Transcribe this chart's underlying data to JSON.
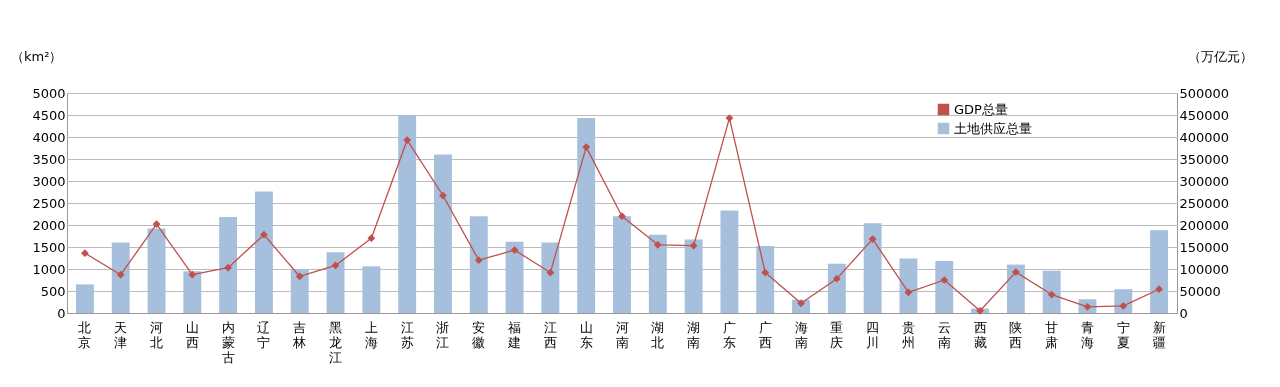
{
  "chart_data": {
    "type": "bar",
    "ylabel": "（km²）",
    "y2label": "（万亿元）",
    "categories": [
      "北京",
      "天津",
      "河北",
      "山西",
      "内蒙古",
      "辽宁",
      "吉林",
      "黑龙江",
      "上海",
      "江苏",
      "浙江",
      "安徽",
      "福建",
      "江西",
      "山东",
      "河南",
      "湖北",
      "湖南",
      "广东",
      "广西",
      "海南",
      "重庆",
      "四川",
      "贵州",
      "云南",
      "西藏",
      "陕西",
      "甘肃",
      "青海",
      "宁夏",
      "新疆"
    ],
    "series": [
      {
        "name": "GDP总量",
        "type": "line",
        "axis": "y2",
        "color": "#c0504d",
        "marker": "diamond",
        "values": [
          136000,
          87000,
          202000,
          87000,
          103000,
          178000,
          83000,
          108000,
          170000,
          393000,
          267000,
          120000,
          143000,
          92000,
          377000,
          220000,
          155000,
          153000,
          443000,
          92000,
          22000,
          78000,
          168000,
          47000,
          75000,
          5000,
          93000,
          42000,
          14000,
          16000,
          54000
        ]
      },
      {
        "name": "土地供应总量",
        "color": "#a5bfdd",
        "values": [
          650,
          1600,
          1920,
          950,
          2180,
          2760,
          1000,
          1380,
          1060,
          4500,
          3600,
          2200,
          1620,
          1600,
          4430,
          2200,
          1780,
          1670,
          2330,
          1520,
          300,
          1120,
          2040,
          1240,
          1180,
          100,
          1100,
          960,
          310,
          540,
          1880
        ]
      }
    ],
    "ylim": [
      0,
      5000
    ],
    "yticks": [
      0,
      500,
      1000,
      1500,
      2000,
      2500,
      3000,
      3500,
      4000,
      4500,
      5000
    ],
    "y2lim": [
      0,
      500000
    ],
    "y2ticks": [
      0,
      50000,
      100000,
      150000,
      200000,
      250000,
      300000,
      350000,
      400000,
      450000,
      500000
    ],
    "grid": "y",
    "legend": "top right"
  }
}
